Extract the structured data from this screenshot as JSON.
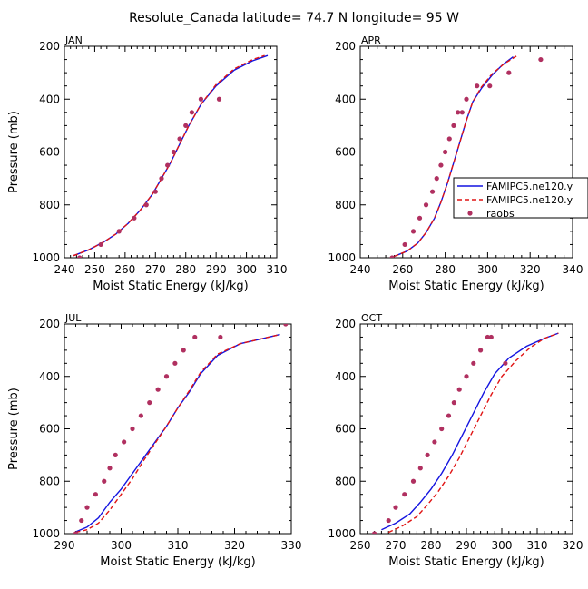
{
  "figure_title": "Resolute_Canada  latitude= 74.7 N longitude= 95 W",
  "legend": {
    "items": [
      {
        "label": "FAMIPC5.ne120.y",
        "color": "#1414e0",
        "style": "solid"
      },
      {
        "label": "FAMIPC5.ne120.y",
        "color": "#e01414",
        "style": "dashed"
      },
      {
        "label": "raobs",
        "color": "#b03060",
        "style": "dot"
      }
    ]
  },
  "chart_data": [
    {
      "type": "line",
      "panel_label": "JAN",
      "xlabel": "Moist Static Energy (kJ/kg)",
      "ylabel": "Pressure (mb)",
      "xlim": [
        240,
        310
      ],
      "ylim": [
        1000,
        200
      ],
      "xticks": [
        240,
        250,
        260,
        270,
        280,
        290,
        300,
        310
      ],
      "yticks": [
        200,
        400,
        600,
        800,
        1000
      ],
      "series": [
        {
          "name": "FAMIPC5.ne120.y",
          "color": "#1414e0",
          "style": "solid",
          "x": [
            243,
            248,
            253,
            257,
            261,
            265,
            269,
            272,
            275,
            278,
            281,
            285,
            290,
            296,
            302,
            307
          ],
          "y": [
            992,
            970,
            940,
            910,
            870,
            820,
            760,
            700,
            640,
            570,
            500,
            420,
            350,
            290,
            255,
            235
          ]
        },
        {
          "name": "FAMIPC5.ne120.y",
          "color": "#e01414",
          "style": "dashed",
          "x": [
            243,
            248,
            253,
            257,
            261,
            265,
            269,
            272,
            275,
            278,
            281,
            285,
            290,
            296,
            302,
            306
          ],
          "y": [
            992,
            970,
            940,
            910,
            870,
            820,
            760,
            700,
            640,
            570,
            500,
            420,
            345,
            285,
            250,
            235
          ]
        },
        {
          "name": "raobs",
          "color": "#b03060",
          "style": "dot",
          "x": [
            245,
            252,
            258,
            263,
            267,
            270,
            272,
            274,
            276,
            278,
            280,
            282,
            285,
            291
          ],
          "y": [
            1000,
            950,
            900,
            850,
            800,
            750,
            700,
            650,
            600,
            550,
            500,
            450,
            400,
            400
          ]
        }
      ]
    },
    {
      "type": "line",
      "panel_label": "APR",
      "xlabel": "Moist Static Energy (kJ/kg)",
      "ylabel": "",
      "xlim": [
        240,
        340
      ],
      "ylim": [
        1000,
        200
      ],
      "xticks": [
        240,
        260,
        280,
        300,
        320,
        340
      ],
      "yticks": [
        200,
        400,
        600,
        800,
        1000
      ],
      "series": [
        {
          "name": "FAMIPC5.ne120.y",
          "color": "#1414e0",
          "style": "solid",
          "x": [
            256,
            262,
            267,
            271,
            275,
            278,
            281,
            284,
            287,
            290,
            293,
            297,
            302,
            307,
            312
          ],
          "y": [
            995,
            975,
            945,
            905,
            850,
            790,
            720,
            640,
            560,
            480,
            410,
            360,
            310,
            270,
            240
          ]
        },
        {
          "name": "FAMIPC5.ne120.y",
          "color": "#e01414",
          "style": "dashed",
          "x": [
            256,
            262,
            267,
            271,
            275,
            278,
            281,
            284,
            287,
            290,
            293,
            297,
            302,
            308,
            314
          ],
          "y": [
            995,
            975,
            945,
            905,
            850,
            790,
            720,
            640,
            560,
            480,
            410,
            355,
            305,
            265,
            235
          ]
        },
        {
          "name": "raobs",
          "color": "#b03060",
          "style": "dot",
          "x": [
            255,
            261,
            265,
            268,
            271,
            274,
            276,
            278,
            280,
            282,
            284,
            286,
            288,
            290,
            295,
            301,
            310,
            325
          ],
          "y": [
            1000,
            950,
            900,
            850,
            800,
            750,
            700,
            650,
            600,
            550,
            500,
            450,
            450,
            400,
            350,
            350,
            300,
            250
          ]
        }
      ]
    },
    {
      "type": "line",
      "panel_label": "JUL",
      "xlabel": "Moist Static Energy (kJ/kg)",
      "ylabel": "Pressure (mb)",
      "xlim": [
        290,
        330
      ],
      "ylim": [
        1000,
        200
      ],
      "xticks": [
        290,
        300,
        310,
        320,
        330
      ],
      "yticks": [
        200,
        400,
        600,
        800,
        1000
      ],
      "series": [
        {
          "name": "FAMIPC5.ne120.y",
          "color": "#1414e0",
          "style": "solid",
          "x": [
            292,
            294,
            296,
            298,
            300,
            302,
            304,
            306,
            308,
            310,
            312,
            314,
            317,
            321,
            325,
            328
          ],
          "y": [
            993,
            975,
            940,
            880,
            830,
            770,
            710,
            650,
            590,
            520,
            460,
            390,
            320,
            275,
            255,
            240
          ]
        },
        {
          "name": "FAMIPC5.ne120.y",
          "color": "#e01414",
          "style": "dashed",
          "x": [
            292,
            294,
            296,
            298,
            300,
            302,
            304,
            306,
            308,
            310,
            312,
            314,
            317,
            321,
            325,
            328
          ],
          "y": [
            995,
            985,
            960,
            910,
            850,
            790,
            720,
            655,
            590,
            520,
            455,
            385,
            315,
            275,
            255,
            240
          ]
        },
        {
          "name": "raobs",
          "color": "#b03060",
          "style": "dot",
          "x": [
            292,
            293,
            294,
            295.5,
            297,
            298,
            299,
            300.5,
            302,
            303.5,
            305,
            306.5,
            308,
            309.5,
            311,
            313,
            317.5,
            329
          ],
          "y": [
            1000,
            950,
            900,
            850,
            800,
            750,
            700,
            650,
            600,
            550,
            500,
            450,
            400,
            350,
            300,
            250,
            250,
            200
          ]
        }
      ]
    },
    {
      "type": "line",
      "panel_label": "OCT",
      "xlabel": "Moist Static Energy (kJ/kg)",
      "ylabel": "",
      "xlim": [
        260,
        320
      ],
      "ylim": [
        1000,
        200
      ],
      "xticks": [
        260,
        270,
        280,
        290,
        300,
        310,
        320
      ],
      "yticks": [
        200,
        400,
        600,
        800,
        1000
      ],
      "series": [
        {
          "name": "FAMIPC5.ne120.y",
          "color": "#1414e0",
          "style": "solid",
          "x": [
            266,
            270,
            274,
            277,
            280,
            283,
            286,
            289,
            292,
            295,
            298,
            302,
            307,
            312,
            316
          ],
          "y": [
            985,
            960,
            925,
            880,
            830,
            770,
            700,
            620,
            540,
            460,
            390,
            330,
            285,
            255,
            235
          ]
        },
        {
          "name": "FAMIPC5.ne120.y",
          "color": "#e01414",
          "style": "dashed",
          "x": [
            268,
            272,
            276,
            279,
            282,
            285,
            288,
            291,
            294,
            297,
            300,
            304,
            308,
            312,
            316
          ],
          "y": [
            995,
            970,
            935,
            890,
            840,
            780,
            710,
            630,
            550,
            470,
            400,
            340,
            290,
            255,
            235
          ]
        },
        {
          "name": "raobs",
          "color": "#b03060",
          "style": "dot",
          "x": [
            264,
            268,
            270,
            272.5,
            275,
            277,
            279,
            281,
            283,
            285,
            286.5,
            288,
            290,
            292,
            294,
            296,
            297,
            301
          ],
          "y": [
            1000,
            950,
            900,
            850,
            800,
            750,
            700,
            650,
            600,
            550,
            500,
            450,
            400,
            350,
            300,
            250,
            250,
            350
          ]
        }
      ]
    }
  ]
}
